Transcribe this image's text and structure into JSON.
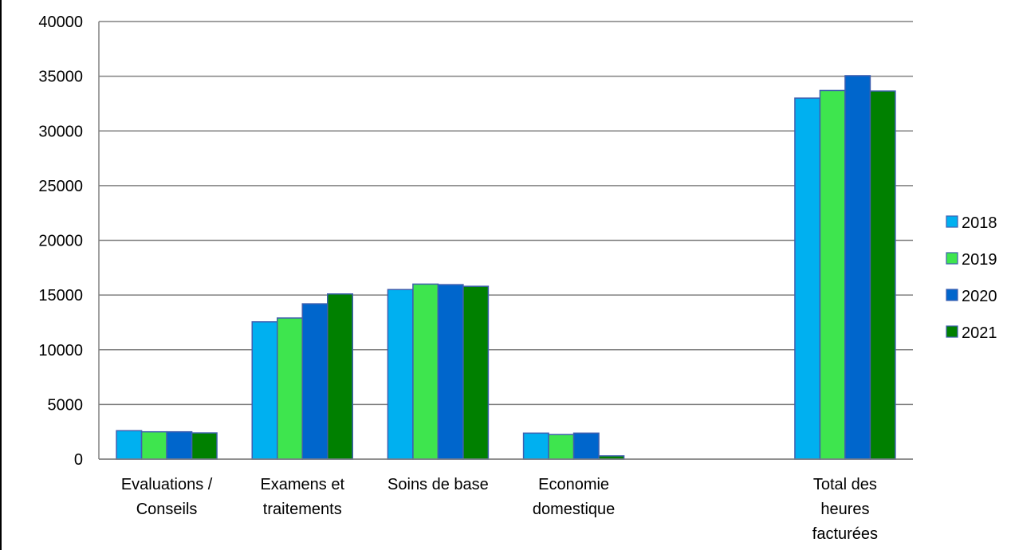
{
  "chart_data": {
    "type": "bar",
    "categories": [
      [
        "Evaluations /",
        "Conseils"
      ],
      [
        "Examens et",
        "traitements"
      ],
      [
        "Soins de base"
      ],
      [
        "Economie",
        "domestique"
      ],
      [
        ""
      ],
      [
        "Total des",
        "heures",
        "facturées"
      ]
    ],
    "series": [
      {
        "name": "2018",
        "color": "#00B0F0",
        "values": [
          2600,
          12550,
          15500,
          2380,
          null,
          33000
        ]
      },
      {
        "name": "2019",
        "color": "#3EE54E",
        "values": [
          2500,
          12900,
          16000,
          2250,
          null,
          33700
        ]
      },
      {
        "name": "2020",
        "color": "#0066CC",
        "values": [
          2500,
          14200,
          15950,
          2380,
          null,
          35050
        ]
      },
      {
        "name": "2021",
        "color": "#008000",
        "values": [
          2400,
          15100,
          15800,
          300,
          null,
          33650
        ]
      }
    ],
    "ylim": [
      0,
      40000
    ],
    "yticks": [
      0,
      5000,
      10000,
      15000,
      20000,
      25000,
      30000,
      35000,
      40000
    ],
    "grid": true,
    "legend": "right",
    "title": "",
    "xlabel": "",
    "ylabel": ""
  }
}
